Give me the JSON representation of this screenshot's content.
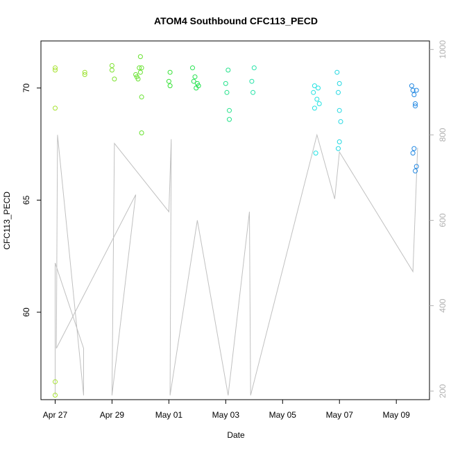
{
  "chart_data": {
    "type": "scatter",
    "title": "ATOM4 Southbound CFC113_PECD",
    "xlabel": "Date",
    "ylabel": "CFC113_PECD",
    "xlim": [
      "2018-04-26T12:00",
      "2018-05-10T04:00"
    ],
    "ylim": [
      56.1,
      72.1
    ],
    "x_ticks": [
      {
        "date": "2018-04-27",
        "label": "Apr 27"
      },
      {
        "date": "2018-04-29",
        "label": "Apr 29"
      },
      {
        "date": "2018-05-01",
        "label": "May 01"
      },
      {
        "date": "2018-05-03",
        "label": "May 03"
      },
      {
        "date": "2018-05-05",
        "label": "May 05"
      },
      {
        "date": "2018-05-07",
        "label": "May 07"
      },
      {
        "date": "2018-05-09",
        "label": "May 09"
      }
    ],
    "y_ticks": [
      60,
      65,
      70
    ],
    "secondary_axis": {
      "side": "right",
      "reversed": true,
      "color": "#b0b0b0",
      "ylim": [
        1020,
        180
      ],
      "ticks": [
        200,
        400,
        600,
        800,
        1000
      ],
      "line_color": "#c0c0c0"
    },
    "color_scale": "rainbow by time (yellow-green to blue)",
    "grid": false,
    "legend": "none",
    "series": [
      {
        "values": [
          {
            "x": "2018-04-27T00:00",
            "y": 70.9,
            "color": "#a6e22e"
          },
          {
            "x": "2018-04-27T00:00",
            "y": 70.8,
            "color": "#a6e22e"
          },
          {
            "x": "2018-04-27T00:00",
            "y": 69.1,
            "color": "#a6e22e"
          },
          {
            "x": "2018-04-27T00:00",
            "y": 56.9,
            "color": "#a6e22e"
          },
          {
            "x": "2018-04-27T00:00",
            "y": 56.3,
            "color": "#a6e22e"
          },
          {
            "x": "2018-04-28T01:00",
            "y": 70.7,
            "color": "#9be22e"
          },
          {
            "x": "2018-04-28T01:00",
            "y": 70.6,
            "color": "#9be22e"
          },
          {
            "x": "2018-04-29T00:00",
            "y": 71.0,
            "color": "#7de22e"
          },
          {
            "x": "2018-04-29T00:00",
            "y": 70.8,
            "color": "#7de22e"
          },
          {
            "x": "2018-04-29T02:00",
            "y": 70.4,
            "color": "#7de22e"
          },
          {
            "x": "2018-04-29T20:00",
            "y": 70.6,
            "color": "#66e22e"
          },
          {
            "x": "2018-04-29T21:00",
            "y": 70.5,
            "color": "#66e22e"
          },
          {
            "x": "2018-04-29T22:00",
            "y": 70.4,
            "color": "#66e22e"
          },
          {
            "x": "2018-04-29T23:00",
            "y": 70.9,
            "color": "#66e22e"
          },
          {
            "x": "2018-04-30T00:00",
            "y": 70.7,
            "color": "#66e22e"
          },
          {
            "x": "2018-04-30T00:00",
            "y": 71.4,
            "color": "#66e22e"
          },
          {
            "x": "2018-04-30T01:00",
            "y": 70.9,
            "color": "#66e22e"
          },
          {
            "x": "2018-04-30T01:00",
            "y": 69.6,
            "color": "#66e22e"
          },
          {
            "x": "2018-04-30T01:00",
            "y": 68.0,
            "color": "#66e22e"
          },
          {
            "x": "2018-05-01T00:00",
            "y": 70.3,
            "color": "#33e233"
          },
          {
            "x": "2018-05-01T01:00",
            "y": 70.7,
            "color": "#33e233"
          },
          {
            "x": "2018-05-01T01:00",
            "y": 70.1,
            "color": "#33e233"
          },
          {
            "x": "2018-05-01T20:00",
            "y": 70.9,
            "color": "#22e24d"
          },
          {
            "x": "2018-05-01T21:00",
            "y": 70.3,
            "color": "#22e24d"
          },
          {
            "x": "2018-05-01T22:00",
            "y": 70.5,
            "color": "#22e24d"
          },
          {
            "x": "2018-05-01T23:00",
            "y": 70.0,
            "color": "#22e24d"
          },
          {
            "x": "2018-05-02T00:00",
            "y": 70.2,
            "color": "#22e24d"
          },
          {
            "x": "2018-05-02T01:00",
            "y": 70.1,
            "color": "#22e24d"
          },
          {
            "x": "2018-05-03T00:00",
            "y": 70.2,
            "color": "#22e28a"
          },
          {
            "x": "2018-05-03T01:00",
            "y": 69.8,
            "color": "#22e28a"
          },
          {
            "x": "2018-05-03T02:00",
            "y": 70.8,
            "color": "#22e28a"
          },
          {
            "x": "2018-05-03T03:00",
            "y": 69.0,
            "color": "#22e28a"
          },
          {
            "x": "2018-05-03T03:00",
            "y": 68.6,
            "color": "#22e28a"
          },
          {
            "x": "2018-05-03T22:00",
            "y": 70.3,
            "color": "#22e2a6"
          },
          {
            "x": "2018-05-03T23:00",
            "y": 69.8,
            "color": "#22e2a6"
          },
          {
            "x": "2018-05-04T00:00",
            "y": 70.9,
            "color": "#22e2a6"
          },
          {
            "x": "2018-05-06T02:00",
            "y": 69.8,
            "color": "#22e2e2"
          },
          {
            "x": "2018-05-06T03:00",
            "y": 70.1,
            "color": "#22e2e2"
          },
          {
            "x": "2018-05-06T03:00",
            "y": 69.1,
            "color": "#22e2e2"
          },
          {
            "x": "2018-05-06T04:00",
            "y": 67.1,
            "color": "#22e2e2"
          },
          {
            "x": "2018-05-06T05:00",
            "y": 69.5,
            "color": "#22e2e2"
          },
          {
            "x": "2018-05-06T06:00",
            "y": 70.0,
            "color": "#22e2e2"
          },
          {
            "x": "2018-05-06T07:00",
            "y": 69.3,
            "color": "#22e2e2"
          },
          {
            "x": "2018-05-06T22:00",
            "y": 70.7,
            "color": "#22d8e2"
          },
          {
            "x": "2018-05-06T23:00",
            "y": 69.8,
            "color": "#22d8e2"
          },
          {
            "x": "2018-05-07T00:00",
            "y": 70.2,
            "color": "#22d8e2"
          },
          {
            "x": "2018-05-07T00:00",
            "y": 69.0,
            "color": "#22d8e2"
          },
          {
            "x": "2018-05-07T01:00",
            "y": 68.5,
            "color": "#22d8e2"
          },
          {
            "x": "2018-05-07T00:00",
            "y": 67.6,
            "color": "#22d8e2"
          },
          {
            "x": "2018-05-06T23:00",
            "y": 67.3,
            "color": "#22d8e2"
          },
          {
            "x": "2018-05-09T13:00",
            "y": 70.1,
            "color": "#2288e2"
          },
          {
            "x": "2018-05-09T14:00",
            "y": 69.9,
            "color": "#2288e2"
          },
          {
            "x": "2018-05-09T15:00",
            "y": 69.7,
            "color": "#2288e2"
          },
          {
            "x": "2018-05-09T16:00",
            "y": 69.3,
            "color": "#2288e2"
          },
          {
            "x": "2018-05-09T16:00",
            "y": 69.2,
            "color": "#2288e2"
          },
          {
            "x": "2018-05-09T17:00",
            "y": 69.9,
            "color": "#2288e2"
          },
          {
            "x": "2018-05-09T14:00",
            "y": 67.1,
            "color": "#2288e2"
          },
          {
            "x": "2018-05-09T15:00",
            "y": 67.3,
            "color": "#2288e2"
          },
          {
            "x": "2018-05-09T17:00",
            "y": 66.5,
            "color": "#2288e2"
          },
          {
            "x": "2018-05-09T16:00",
            "y": 66.3,
            "color": "#2288e2"
          }
        ]
      }
    ],
    "secondary_series": [
      {
        "values": [
          {
            "x": "2018-04-27T00:00",
            "y": 190
          },
          {
            "x": "2018-04-27T00:00",
            "y": 500
          },
          {
            "x": "2018-04-28T00:00",
            "y": 300
          },
          {
            "x": "2018-04-28T00:00",
            "y": 190
          },
          {
            "x": "2018-04-28T00:00",
            "y": 190
          },
          {
            "x": "2018-04-27T02:00",
            "y": 800
          },
          {
            "x": "2018-04-27T01:00",
            "y": 300
          },
          {
            "x": "2018-04-29T20:00",
            "y": 660
          },
          {
            "x": "2018-04-29T00:00",
            "y": 190
          },
          {
            "x": "2018-04-29T02:00",
            "y": 780
          },
          {
            "x": "2018-05-01T00:00",
            "y": 620
          },
          {
            "x": "2018-05-01T02:00",
            "y": 790
          },
          {
            "x": "2018-05-01T01:00",
            "y": 190
          },
          {
            "x": "2018-05-02T00:00",
            "y": 600
          },
          {
            "x": "2018-05-03T02:00",
            "y": 190
          },
          {
            "x": "2018-05-03T20:00",
            "y": 620
          },
          {
            "x": "2018-05-03T21:00",
            "y": 190
          },
          {
            "x": "2018-05-06T05:00",
            "y": 800
          },
          {
            "x": "2018-05-06T20:00",
            "y": 650
          },
          {
            "x": "2018-05-07T00:00",
            "y": 760
          },
          {
            "x": "2018-05-09T14:00",
            "y": 480
          },
          {
            "x": "2018-05-09T18:00",
            "y": 770
          }
        ]
      }
    ]
  }
}
